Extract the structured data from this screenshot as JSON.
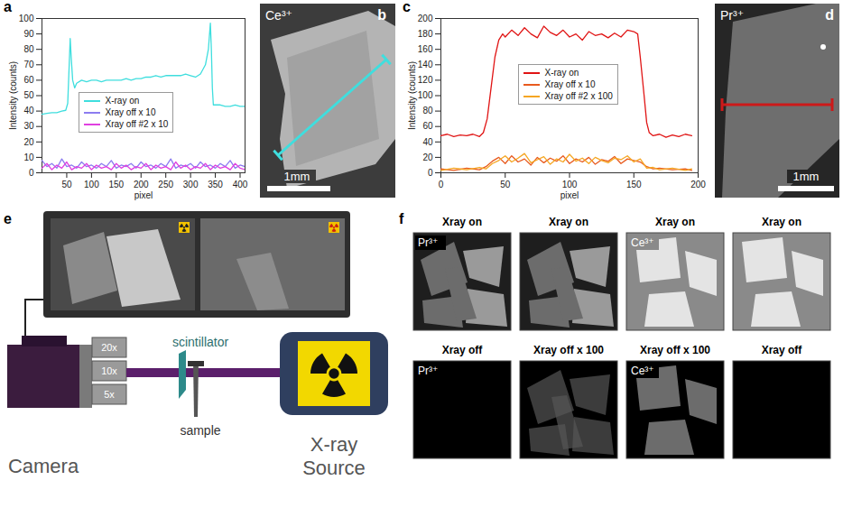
{
  "chart_data": [
    {
      "panel": "a",
      "type": "line",
      "x_label": "pixel",
      "y_label": "Intensity (counts)",
      "xlim": [
        0,
        410
      ],
      "xticks": [
        50,
        100,
        150,
        200,
        250,
        300,
        350,
        400
      ],
      "ylim": [
        0,
        100
      ],
      "yticks": [
        0,
        10,
        20,
        30,
        40,
        50,
        60,
        70,
        80,
        90,
        100
      ],
      "grid": false,
      "legend": "center left",
      "series": [
        {
          "name": "X-ray on",
          "color": "#3fdede",
          "x": [
            0,
            10,
            20,
            30,
            40,
            48,
            52,
            55,
            57,
            59,
            62,
            66,
            70,
            80,
            90,
            100,
            110,
            120,
            130,
            140,
            150,
            160,
            170,
            180,
            190,
            200,
            210,
            220,
            230,
            240,
            250,
            260,
            270,
            280,
            290,
            300,
            310,
            320,
            330,
            336,
            340,
            342,
            344,
            346,
            350,
            360,
            370,
            380,
            390,
            400,
            410
          ],
          "values": [
            38,
            38.5,
            39,
            39,
            40,
            40.5,
            45,
            70,
            87,
            75,
            60,
            55,
            58,
            60,
            59,
            60,
            60,
            59,
            60,
            60,
            60,
            60,
            61,
            60,
            61,
            61,
            62,
            62,
            63,
            62,
            63,
            63,
            63,
            63,
            64,
            63,
            62,
            64,
            70,
            80,
            97,
            80,
            55,
            44,
            44,
            44,
            43,
            43,
            44,
            43,
            43
          ]
        },
        {
          "name": "Xray off x 10",
          "color": "#8c7cf0",
          "x": [
            0,
            10,
            20,
            30,
            40,
            50,
            60,
            70,
            80,
            90,
            100,
            110,
            120,
            130,
            140,
            150,
            160,
            170,
            180,
            190,
            200,
            210,
            220,
            230,
            240,
            250,
            260,
            270,
            280,
            290,
            300,
            310,
            320,
            330,
            340,
            350,
            360,
            370,
            380,
            390,
            400,
            410
          ],
          "values": [
            8,
            4,
            6,
            3,
            9,
            4,
            5,
            3,
            7,
            4,
            5,
            3,
            6,
            4,
            8,
            3,
            5,
            4,
            6,
            3,
            7,
            4,
            5,
            3,
            6,
            4,
            9,
            3,
            5,
            4,
            6,
            3,
            7,
            4,
            5,
            3,
            6,
            4,
            8,
            3,
            5,
            4
          ]
        },
        {
          "name": "Xray off #2 x 10",
          "color": "#e040e0",
          "x": [
            0,
            10,
            20,
            30,
            40,
            50,
            60,
            70,
            80,
            90,
            100,
            110,
            120,
            130,
            140,
            150,
            160,
            170,
            180,
            190,
            200,
            210,
            220,
            230,
            240,
            250,
            260,
            270,
            280,
            290,
            300,
            310,
            320,
            330,
            340,
            350,
            360,
            370,
            380,
            390,
            400,
            410
          ],
          "values": [
            3,
            6,
            2,
            5,
            3,
            7,
            2,
            4,
            3,
            6,
            2,
            5,
            3,
            4,
            2,
            6,
            3,
            5,
            2,
            4,
            3,
            6,
            2,
            5,
            3,
            4,
            2,
            7,
            3,
            5,
            2,
            4,
            3,
            6,
            2,
            5,
            3,
            4,
            2,
            6,
            3,
            2
          ]
        }
      ]
    },
    {
      "panel": "c",
      "type": "line",
      "x_label": "pixel",
      "y_label": "Intensity (counts)",
      "xlim": [
        0,
        200
      ],
      "xticks": [
        0,
        50,
        100,
        150,
        200
      ],
      "ylim": [
        0,
        200
      ],
      "yticks": [
        0,
        20,
        40,
        60,
        80,
        100,
        120,
        140,
        160,
        180,
        200
      ],
      "grid": false,
      "legend": "center",
      "series": [
        {
          "name": "X-ray on",
          "color": "#e01414",
          "x": [
            0,
            5,
            10,
            15,
            20,
            25,
            30,
            33,
            36,
            39,
            42,
            45,
            48,
            50,
            55,
            60,
            65,
            70,
            75,
            80,
            85,
            90,
            95,
            100,
            105,
            110,
            115,
            120,
            125,
            130,
            135,
            140,
            145,
            150,
            153,
            155,
            158,
            160,
            162,
            165,
            170,
            175,
            180,
            185,
            190,
            195
          ],
          "values": [
            48,
            50,
            47,
            49,
            48,
            50,
            47,
            52,
            70,
            110,
            150,
            172,
            180,
            176,
            185,
            178,
            188,
            180,
            175,
            190,
            182,
            178,
            185,
            176,
            180,
            172,
            183,
            178,
            180,
            175,
            181,
            176,
            185,
            183,
            180,
            150,
            100,
            65,
            52,
            48,
            50,
            46,
            49,
            47,
            50,
            48
          ]
        },
        {
          "name": "Xray off x 10",
          "color": "#e85a1e",
          "x": [
            0,
            10,
            20,
            30,
            35,
            40,
            45,
            50,
            55,
            60,
            65,
            70,
            75,
            80,
            85,
            90,
            95,
            100,
            105,
            110,
            115,
            120,
            125,
            130,
            135,
            140,
            145,
            150,
            155,
            160,
            165,
            170,
            180,
            190,
            195
          ],
          "values": [
            5,
            3,
            6,
            4,
            8,
            15,
            20,
            12,
            22,
            14,
            18,
            10,
            20,
            13,
            19,
            15,
            22,
            12,
            18,
            14,
            20,
            11,
            17,
            15,
            21,
            12,
            18,
            16,
            14,
            8,
            5,
            6,
            4,
            5,
            3
          ]
        },
        {
          "name": "Xray off #2 x 100",
          "color": "#f5a623",
          "x": [
            0,
            10,
            20,
            30,
            35,
            40,
            45,
            50,
            55,
            60,
            65,
            70,
            75,
            80,
            85,
            90,
            95,
            100,
            105,
            110,
            115,
            120,
            125,
            130,
            135,
            140,
            145,
            150,
            155,
            160,
            165,
            170,
            180,
            190,
            195
          ],
          "values": [
            3,
            6,
            4,
            7,
            5,
            12,
            16,
            22,
            14,
            19,
            25,
            13,
            17,
            21,
            11,
            18,
            14,
            24,
            15,
            19,
            12,
            20,
            16,
            13,
            19,
            17,
            22,
            14,
            18,
            6,
            7,
            4,
            6,
            3,
            5
          ]
        }
      ]
    }
  ],
  "photos": [
    {
      "panel": "b",
      "label": "Ce³⁺",
      "scale_bar": "1mm",
      "color": "#3fdede"
    },
    {
      "panel": "d",
      "label": "Pr³⁺",
      "scale_bar": "1mm",
      "color": "#cc1a1a"
    }
  ],
  "diagram": {
    "panel": "e",
    "lenses": [
      "20x",
      "10x",
      "5x"
    ],
    "scintillator": "scintillator",
    "sample": "sample",
    "camera": "Camera",
    "source": "X-ray Source"
  },
  "image_grid": {
    "panel": "f",
    "tiles": [
      {
        "title": "Xray on",
        "label": "Pr³⁺"
      },
      {
        "title": "Xray on",
        "label": null
      },
      {
        "title": "Xray on",
        "label": "Ce³⁺"
      },
      {
        "title": "Xray on",
        "label": null
      },
      {
        "title": "Xray off",
        "label": "Pr³⁺"
      },
      {
        "title": "Xray off x 100",
        "label": null
      },
      {
        "title": "Xray off x 100",
        "label": "Ce³⁺"
      },
      {
        "title": "Xray off",
        "label": null
      }
    ]
  }
}
